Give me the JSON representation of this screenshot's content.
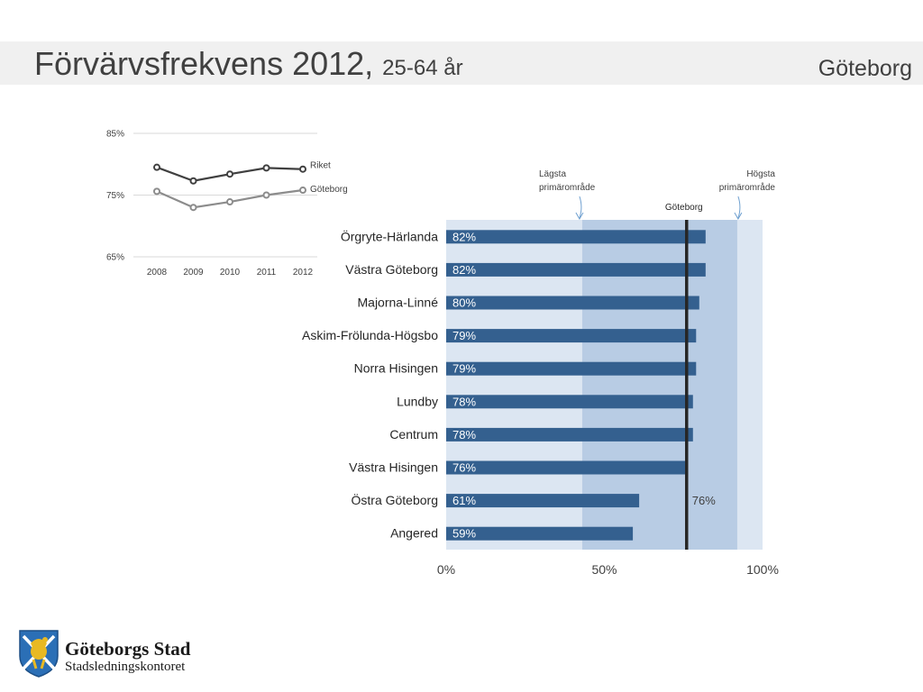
{
  "header": {
    "title": "Förvärvsfrekvens 2012,",
    "subtitle": "25-64 år",
    "city": "Göteborg"
  },
  "logo": {
    "name": "Göteborgs Stad",
    "department": "Stadsledningskontoret"
  },
  "colors": {
    "bar": "#34608f",
    "band_outer": "#dce6f2",
    "band_inner": "#b8cce4",
    "marker_line": "#262626",
    "riket_line": "#404040",
    "goteborg_line": "#8c8c8c",
    "arrow": "#6fa0d0"
  },
  "chart_data": [
    {
      "type": "line",
      "title": "",
      "x": [
        "2008",
        "2009",
        "2010",
        "2011",
        "2012"
      ],
      "series": [
        {
          "name": "Riket",
          "values": [
            79.5,
            77.3,
            78.4,
            79.4,
            79.2
          ]
        },
        {
          "name": "Göteborg",
          "values": [
            75.6,
            73.0,
            73.9,
            75.0,
            75.8
          ]
        }
      ],
      "yticks": [
        "65%",
        "75%",
        "85%"
      ],
      "ylim": [
        65,
        85
      ],
      "grid": true
    },
    {
      "type": "bar",
      "orientation": "horizontal",
      "categories": [
        "Örgryte-Härlanda",
        "Västra Göteborg",
        "Majorna-Linné",
        "Askim-Frölunda-Högsbo",
        "Norra Hisingen",
        "Lundby",
        "Centrum",
        "Västra Hisingen",
        "Östra Göteborg",
        "Angered"
      ],
      "values": [
        82,
        82,
        80,
        79,
        79,
        78,
        78,
        76,
        61,
        59
      ],
      "labels": [
        "82%",
        "82%",
        "80%",
        "79%",
        "79%",
        "78%",
        "78%",
        "76%",
        "61%",
        "59%"
      ],
      "xticks": [
        "0%",
        "50%",
        "100%"
      ],
      "xlim": [
        0,
        100
      ],
      "reference": {
        "label": "Göteborg",
        "value": 76,
        "value_label": "76%"
      },
      "range_low": {
        "label": "Lägsta primärområde",
        "value": 43
      },
      "range_high": {
        "label": "Högsta primärområde",
        "value": 92
      }
    }
  ]
}
